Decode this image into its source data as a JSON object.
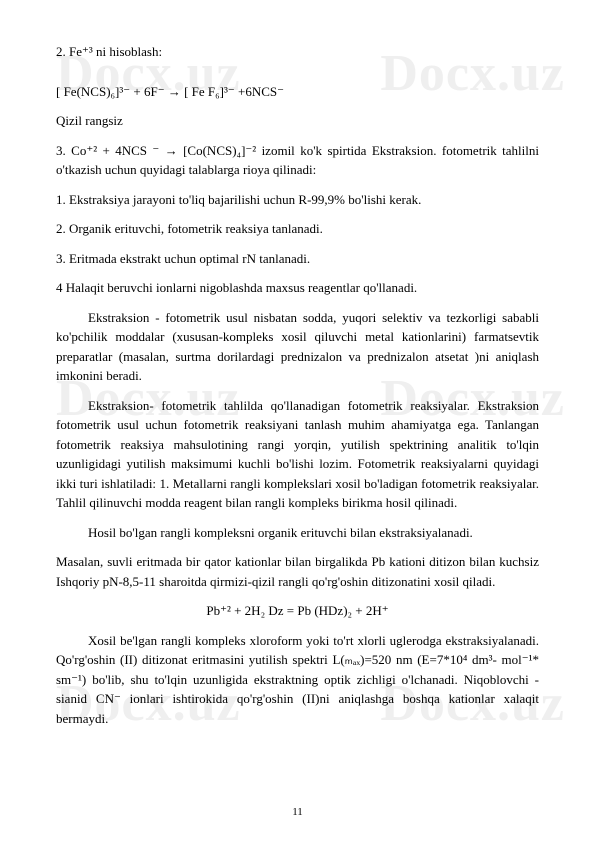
{
  "watermark": "Docx.uz",
  "paragraphs": {
    "p1": "2. Fe⁺³ ni hisoblash:",
    "p2": "[ Fe(NCS)₆]³⁻ + 6F⁻ → [ Fe F₆]³⁻ +6NCS⁻",
    "p3": "Qizil     rangsiz",
    "p4": "3. Co⁺² + 4NCS ⁻ → [Co(NCS)₄]⁻² izomil ko'k spirtida Ekstraksion. fotometrik tahlilni o'tkazish uchun quyidagi talablarga rioya qilinadi:",
    "p5": "1. Ekstraksiya jarayoni to'liq bajarilishi uchun R-99,9% bo'lishi kerak.",
    "p6": " 2. Organik erituvchi, fotometrik reaksiya tanlanadi.",
    "p7": "3. Eritmada ekstrakt uchun optimal rN tanlanadi.",
    "p8": "4 Halaqit beruvchi ionlarni nigoblashda maxsus reagentlar qo'llanadi.",
    "p9": "Ekstraksion - fotometrik usul nisbatan sodda, yuqori selektiv va tezkorligi sababli ko'pchilik moddalar (xususan-kompleks xosil qiluvchi metal kationlarini) farmatsevtik preparatlar (masalan, surtma dorilardagi prednizalon va prednizalon atsetat )ni aniqlash imkonini beradi.",
    "p10": "Ekstraksion- fotometrik tahlilda qo'llanadigan fotometrik reaksiyalar. Ekstraksion fotometrik usul uchun fotometrik reaksiyani tanlash muhim ahamiyatga ega. Tanlangan fotometrik reaksiya mahsulotining rangi yorqin, yutilish spektrining analitik to'lqin uzunligidagi yutilish maksimumi kuchli bo'lishi lozim. Fotometrik reaksiyalarni quyidagi ikki turi ishlatiladi: 1. Metallarni rangli komplekslari xosil bo'ladigan fotometrik reaksiyalar. Tahlil qilinuvchi modda reagent bilan rangli kompleks birikma hosil qilinadi.",
    "p11": "Hosil bo'lgan rangli kompleksni organik erituvchi bilan ekstraksiyalanadi.",
    "p12": "Masalan, suvli eritmada bir qator kationlar bilan birgalikda Pb kationi ditizon bilan kuchsiz Ishqoriy pN-8,5-11 sharoitda qirmizi-qizil rangli qo'rg'oshin ditizonatini xosil qiladi.",
    "p13": "Pb⁺² + 2H₂ Dz = Pb (HDz)₂ + 2H⁺",
    "p14": "Xosil be'lgan rangli kompleks xloroform yoki to'rt xlorli uglerodga ekstraksiyalanadi. Qo'rg'oshin (II) ditizonat eritmasini yutilish spektri L(ₘₐₓ)=520 nm (E=7*10⁴ dm³- mol⁻¹* sm⁻¹) bo'lib, shu to'lqin uzunligida ekstraktning optik zichligi o'lchanadi. Niqoblovchi - sianid CN⁻ ionlari ishtirokida qo'rg'oshin (II)ni aniqlashga boshqa kationlar xalaqit bermaydi."
  },
  "pageNumber": "11"
}
